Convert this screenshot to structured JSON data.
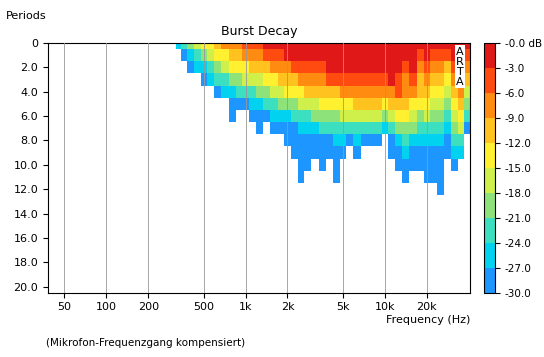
{
  "chart_data": {
    "type": "heatmap",
    "title": "Burst Decay",
    "y_label": "Periods",
    "x_label": "Frequency (Hz)",
    "annotations": [
      "(Mikrofon-Frequenzgang kompensiert)",
      "ARTA"
    ],
    "log": "x",
    "grid": "x",
    "xlim": [
      38,
      41000
    ],
    "xticks": [
      50,
      100,
      200,
      500,
      {
        "value": 1000,
        "label": "1k"
      },
      {
        "value": 2000,
        "label": "2k"
      },
      {
        "value": 5000,
        "label": "5k"
      },
      {
        "value": 10000,
        "label": "10k"
      },
      {
        "value": 20000,
        "label": "20k"
      }
    ],
    "ylim": [
      20.5,
      0
    ],
    "yticks": [
      0,
      {
        "value": 2,
        "label": "2.0"
      },
      {
        "value": 4,
        "label": "4.0"
      },
      {
        "value": 6,
        "label": "6.0"
      },
      {
        "value": 8,
        "label": "8.0"
      },
      {
        "value": 10,
        "label": "10.0"
      },
      {
        "value": 12,
        "label": "12.0"
      },
      {
        "value": 14,
        "label": "14.0"
      },
      {
        "value": 16,
        "label": "16.0"
      },
      {
        "value": 18,
        "label": "18.0"
      },
      {
        "value": 20,
        "label": "20.0"
      }
    ],
    "colorbar_lim": [
      -30,
      0
    ],
    "colorbar_ticks": [
      {
        "value": 0,
        "label": "-0.0 dB"
      },
      {
        "value": -3,
        "label": "-3.0"
      },
      {
        "value": -6,
        "label": "-6.0"
      },
      {
        "value": -9,
        "label": "-9.0"
      },
      {
        "value": -12,
        "label": "-12.0"
      },
      {
        "value": -15,
        "label": "-15.0"
      },
      {
        "value": -18,
        "label": "-18.0"
      },
      {
        "value": -21,
        "label": "-21.0"
      },
      {
        "value": -24,
        "label": "-24.0"
      },
      {
        "value": -27,
        "label": "-27.0"
      },
      {
        "value": -30,
        "label": "-30.0"
      }
    ],
    "periods": [
      0,
      1,
      2,
      3,
      4,
      5,
      6,
      7,
      8,
      9,
      10,
      11,
      12,
      13
    ],
    "frequencies": [
      330,
      360,
      400,
      450,
      500,
      560,
      630,
      710,
      800,
      900,
      1000,
      1120,
      1250,
      1400,
      1600,
      1800,
      2000,
      2240,
      2500,
      2800,
      3150,
      3550,
      4000,
      4500,
      5000,
      5600,
      6300,
      7100,
      8000,
      9000,
      10000,
      11200,
      12500,
      14000,
      16000,
      18000,
      20000,
      22400,
      25000,
      28000,
      31500,
      35500,
      39000
    ],
    "cells": [
      [
        -27,
        null,
        null,
        null,
        null,
        null,
        null,
        null,
        null,
        null,
        null,
        null,
        null,
        null
      ],
      [
        -24,
        -28,
        null,
        null,
        null,
        null,
        null,
        null,
        null,
        null,
        null,
        null,
        null,
        null
      ],
      [
        -21,
        -26,
        -29,
        null,
        null,
        null,
        null,
        null,
        null,
        null,
        null,
        null,
        null,
        null
      ],
      [
        -18,
        -22,
        -27,
        null,
        null,
        null,
        null,
        null,
        null,
        null,
        null,
        null,
        null,
        null
      ],
      [
        -15,
        -20,
        -25,
        -29,
        null,
        null,
        null,
        null,
        null,
        null,
        null,
        null,
        null,
        null
      ],
      [
        -13,
        -17,
        -22,
        -27,
        null,
        null,
        null,
        null,
        null,
        null,
        null,
        null,
        null,
        null
      ],
      [
        -11,
        -15,
        -19,
        -24,
        -29,
        null,
        null,
        null,
        null,
        null,
        null,
        null,
        null,
        null
      ],
      [
        -9,
        -13,
        -17,
        -22,
        -27,
        null,
        null,
        null,
        null,
        null,
        null,
        null,
        null,
        null
      ],
      [
        -8,
        -11,
        -15,
        -20,
        -25,
        -28,
        -29,
        null,
        null,
        null,
        null,
        null,
        null,
        null
      ],
      [
        -7,
        -10,
        -14,
        -19,
        -24,
        -29,
        null,
        null,
        null,
        null,
        null,
        null,
        null,
        null
      ],
      [
        -6,
        -9,
        -13,
        -18,
        -23,
        -28,
        null,
        null,
        null,
        null,
        null,
        null,
        null,
        null
      ],
      [
        -5,
        -8,
        -12,
        -17,
        -22,
        -27,
        -30,
        null,
        null,
        null,
        null,
        null,
        null,
        null
      ],
      [
        -4,
        -7,
        -11,
        -16,
        -21,
        -26,
        -29,
        -30,
        null,
        null,
        null,
        null,
        null,
        null
      ],
      [
        -3,
        -6,
        -10,
        -14,
        -19,
        -24,
        -28,
        null,
        null,
        null,
        null,
        null,
        null,
        null
      ],
      [
        -2,
        -5,
        -9,
        -13,
        -17,
        -22,
        -27,
        -30,
        null,
        null,
        null,
        null,
        null,
        null
      ],
      [
        -1,
        -4,
        -8,
        -12,
        -16,
        -21,
        -26,
        -29,
        null,
        null,
        null,
        null,
        null,
        null
      ],
      [
        -1,
        -3,
        -7,
        -11,
        -15,
        -20,
        -25,
        -28,
        -30,
        null,
        null,
        null,
        null,
        null
      ],
      [
        -1,
        -3,
        -6,
        -10,
        -14,
        -19,
        -24,
        -28,
        -29,
        -30,
        null,
        null,
        null,
        null
      ],
      [
        -1,
        -2,
        -5,
        -9,
        -13,
        -18,
        -23,
        -27,
        -29,
        -30,
        -30,
        -30,
        null,
        null
      ],
      [
        -1,
        -2,
        -5,
        -8,
        -12,
        -17,
        -22,
        -26,
        -28,
        -29,
        -30,
        null,
        null,
        null
      ],
      [
        0,
        -2,
        -4,
        -7,
        -11,
        -16,
        -21,
        -25,
        -28,
        -30,
        null,
        null,
        null,
        null
      ],
      [
        0,
        -2,
        -4,
        -7,
        -10,
        -15,
        -20,
        -24,
        -28,
        -30,
        -30,
        null,
        null,
        null
      ],
      [
        0,
        -1,
        -3,
        -6,
        -10,
        -14,
        -19,
        -24,
        -28,
        -30,
        null,
        null,
        null,
        null
      ],
      [
        0,
        -1,
        -3,
        -6,
        -10,
        -14,
        -19,
        -23,
        -27,
        -29,
        -30,
        -30,
        null,
        null
      ],
      [
        0,
        -1,
        -3,
        -6,
        -9,
        -13,
        -18,
        -22,
        -27,
        -30,
        null,
        null,
        null,
        null
      ],
      [
        0,
        -1,
        -3,
        -5,
        -9,
        -13,
        -18,
        -23,
        -28,
        null,
        null,
        null,
        null,
        null
      ],
      [
        0,
        -1,
        -3,
        -5,
        -8,
        -12,
        -17,
        -22,
        -27,
        -30,
        null,
        null,
        null,
        null
      ],
      [
        0,
        -1,
        -2,
        -5,
        -8,
        -12,
        -17,
        -23,
        -28,
        null,
        null,
        null,
        null,
        null
      ],
      [
        0,
        -1,
        -2,
        -4,
        -8,
        -12,
        -18,
        -24,
        -29,
        null,
        null,
        null,
        null,
        null
      ],
      [
        0,
        -1,
        -2,
        -4,
        -7,
        -11,
        -16,
        -22,
        -28,
        null,
        null,
        null,
        null,
        null
      ],
      [
        -1,
        -2,
        -3,
        -5,
        -9,
        -14,
        -20,
        -26,
        null,
        null,
        null,
        null,
        null,
        null
      ],
      [
        0,
        0,
        -1,
        -3,
        -7,
        -12,
        -17,
        -23,
        -28,
        -30,
        null,
        null,
        null,
        null
      ],
      [
        0,
        0,
        -2,
        -4,
        -6,
        -10,
        -15,
        -20,
        -25,
        -29,
        -30,
        null,
        null,
        null
      ],
      [
        0,
        -1,
        -4,
        -8,
        -7,
        -10,
        -14,
        -19,
        -23,
        -27,
        -29,
        -30,
        null,
        null
      ],
      [
        0,
        -1,
        -3,
        -6,
        -9,
        -13,
        -17,
        -21,
        -25,
        -28,
        -30,
        null,
        null,
        null
      ],
      [
        -1,
        -4,
        -8,
        -10,
        -12,
        -15,
        -19,
        -23,
        -26,
        -29,
        -30,
        null,
        null,
        null
      ],
      [
        -1,
        -3,
        -6,
        -9,
        -12,
        -15,
        -18,
        -22,
        -25,
        -28,
        -30,
        -30,
        null,
        null
      ],
      [
        -2,
        -5,
        -9,
        -12,
        -14,
        -17,
        -20,
        -23,
        -26,
        -29,
        -30,
        -30,
        null,
        null
      ],
      [
        -1,
        -4,
        -8,
        -11,
        -14,
        -18,
        -21,
        -24,
        -27,
        -29,
        -30,
        -30,
        -30,
        null
      ],
      [
        -2,
        -6,
        -10,
        -13,
        -16,
        -19,
        -22,
        -25,
        -28,
        -30,
        null,
        null,
        null,
        null
      ],
      [
        0,
        -2,
        -5,
        -8,
        -10,
        -13,
        -16,
        -19,
        -23,
        -26,
        -29,
        null,
        null,
        null
      ],
      [
        -1,
        -2,
        -3,
        -5,
        -8,
        -12,
        -15,
        -18,
        -22,
        -25,
        null,
        null,
        null,
        null
      ],
      [
        -3,
        -6,
        -9,
        -12,
        -16,
        -20,
        -24,
        -28,
        null,
        null,
        null,
        null,
        null,
        null
      ]
    ]
  }
}
